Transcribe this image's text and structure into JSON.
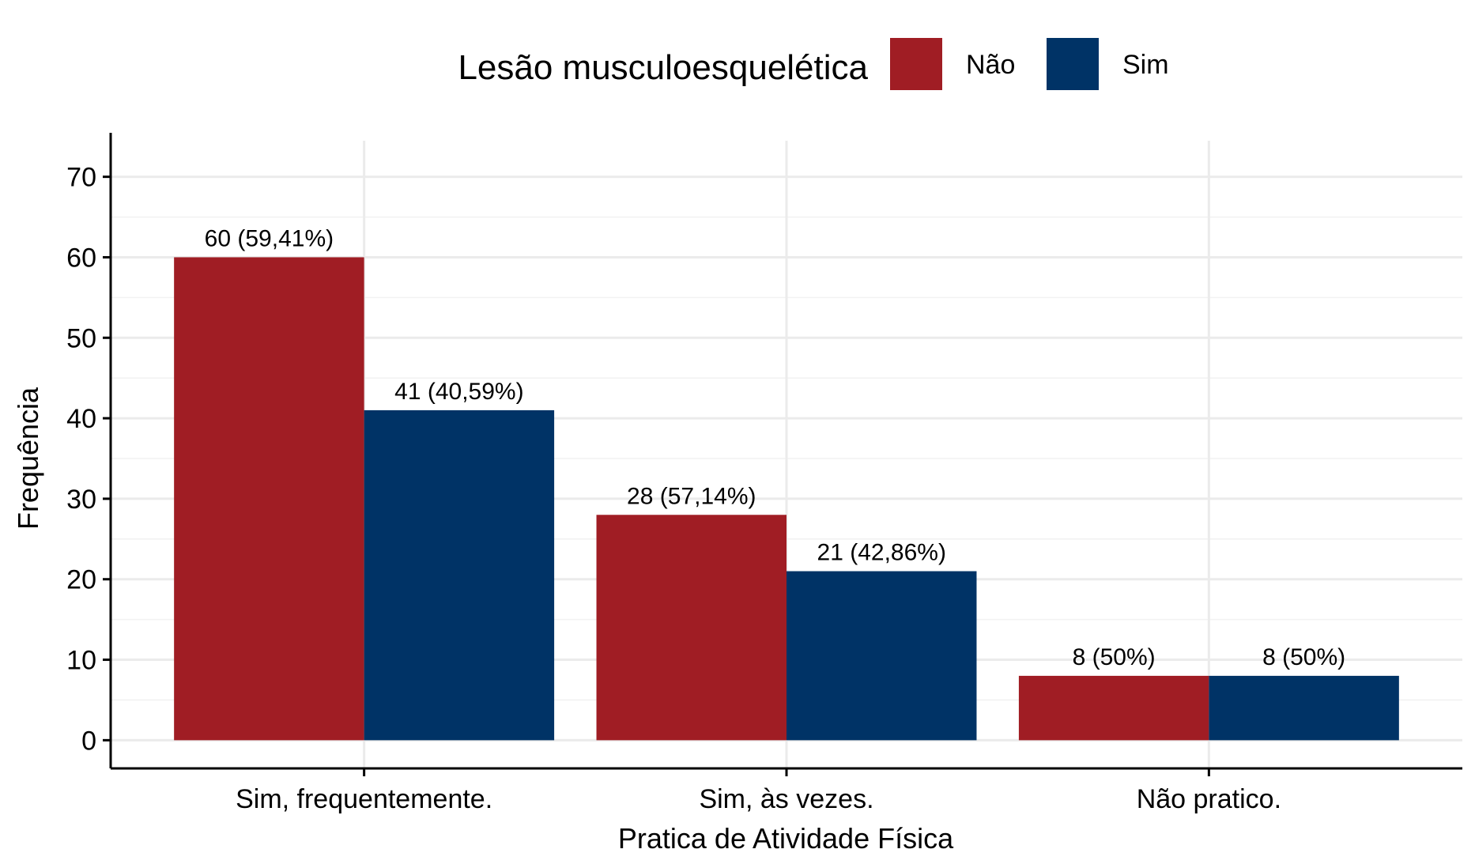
{
  "chart_data": {
    "type": "bar",
    "title": "",
    "xlabel": "Pratica de Atividade Física",
    "ylabel": "Frequência",
    "categories": [
      "Sim, frequentemente.",
      "Sim, às vezes.",
      "Não pratico."
    ],
    "series": [
      {
        "name": "Não",
        "color": "#a01d24",
        "values": [
          60,
          28,
          8
        ],
        "labels": [
          "60 (59,41%)",
          "28 (57,14%)",
          "8 (50%)"
        ]
      },
      {
        "name": "Sim",
        "color": "#003366",
        "values": [
          41,
          21,
          8
        ],
        "labels": [
          "41 (40,59%)",
          "21 (42,86%)",
          "8 (50%)"
        ]
      }
    ],
    "ylim": [
      -3.5,
      73.5
    ],
    "yticks": [
      0,
      10,
      20,
      30,
      40,
      50,
      60,
      70
    ],
    "grid": true,
    "legend": {
      "title": "Lesão musculoesquelética",
      "position": "top"
    }
  }
}
